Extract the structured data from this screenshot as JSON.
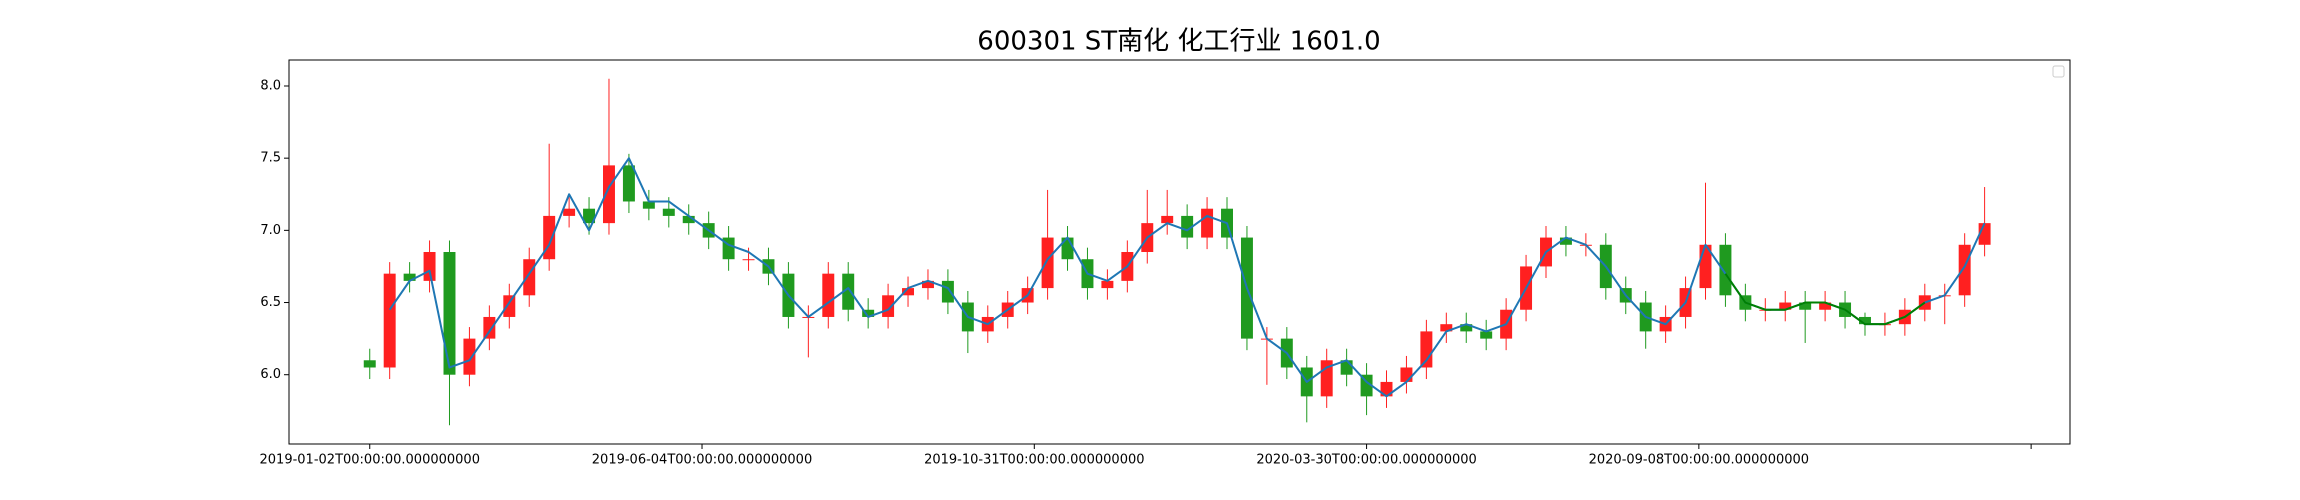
{
  "chart_data": {
    "type": "candlestick",
    "title": "600301 ST南化 化工行业 1601.0",
    "x": [
      0,
      6,
      12,
      18,
      24,
      30,
      36,
      42,
      48,
      54,
      60,
      66,
      72,
      78,
      84,
      90,
      96,
      102,
      108,
      114,
      120,
      126,
      132,
      138,
      144,
      150,
      156,
      162,
      168,
      174,
      180,
      186,
      192,
      198,
      204,
      210,
      216,
      222,
      228,
      234,
      240,
      246,
      252,
      258,
      264,
      270,
      276,
      282,
      288,
      294,
      300,
      306,
      312,
      318,
      324,
      330,
      336,
      342,
      348,
      354,
      360,
      366,
      372,
      378,
      384,
      390,
      396,
      402,
      408,
      414,
      420,
      426,
      432,
      438,
      444,
      450,
      456,
      462,
      468,
      474,
      480,
      486
    ],
    "open": [
      6.1,
      6.05,
      6.7,
      6.65,
      6.85,
      6.0,
      6.25,
      6.4,
      6.55,
      6.8,
      7.1,
      7.15,
      7.05,
      7.45,
      7.2,
      7.15,
      7.1,
      7.05,
      6.95,
      6.8,
      6.8,
      6.7,
      6.4,
      6.4,
      6.7,
      6.45,
      6.4,
      6.55,
      6.6,
      6.65,
      6.5,
      6.3,
      6.4,
      6.5,
      6.6,
      6.95,
      6.8,
      6.6,
      6.65,
      6.85,
      7.05,
      7.1,
      6.95,
      7.15,
      6.95,
      6.25,
      6.25,
      6.05,
      5.85,
      6.1,
      6.0,
      5.85,
      5.95,
      6.05,
      6.3,
      6.35,
      6.3,
      6.25,
      6.45,
      6.75,
      6.95,
      6.9,
      6.9,
      6.6,
      6.5,
      6.3,
      6.4,
      6.6,
      6.9,
      6.55,
      6.45,
      6.45,
      6.5,
      6.45,
      6.5,
      6.4,
      6.35,
      6.35,
      6.45,
      6.55,
      6.55,
      6.9
    ],
    "high": [
      6.18,
      6.78,
      6.78,
      6.93,
      6.93,
      6.33,
      6.48,
      6.63,
      6.88,
      7.6,
      7.23,
      7.23,
      8.05,
      7.53,
      7.28,
      7.23,
      7.18,
      7.13,
      7.03,
      6.88,
      6.88,
      6.78,
      6.48,
      6.78,
      6.78,
      6.53,
      6.63,
      6.68,
      6.73,
      6.73,
      6.58,
      6.48,
      6.58,
      6.68,
      7.28,
      7.03,
      6.88,
      6.73,
      6.93,
      7.28,
      7.28,
      7.18,
      7.23,
      7.23,
      7.03,
      6.33,
      6.33,
      6.13,
      6.18,
      6.18,
      6.08,
      6.03,
      6.13,
      6.38,
      6.43,
      6.43,
      6.38,
      6.53,
      6.83,
      7.03,
      7.03,
      6.98,
      6.98,
      6.68,
      6.58,
      6.48,
      6.68,
      7.33,
      6.98,
      6.63,
      6.53,
      6.58,
      6.58,
      6.58,
      6.58,
      6.43,
      6.43,
      6.53,
      6.63,
      6.63,
      6.98,
      7.3
    ],
    "low": [
      5.97,
      5.97,
      6.57,
      6.57,
      5.65,
      5.92,
      6.17,
      6.32,
      6.47,
      6.72,
      7.02,
      6.97,
      6.97,
      7.12,
      7.07,
      7.02,
      6.97,
      6.87,
      6.72,
      6.72,
      6.62,
      6.32,
      6.12,
      6.32,
      6.37,
      6.32,
      6.32,
      6.47,
      6.52,
      6.42,
      6.15,
      6.22,
      6.32,
      6.42,
      6.52,
      6.72,
      6.52,
      6.52,
      6.57,
      6.77,
      6.97,
      6.87,
      6.87,
      6.87,
      6.17,
      5.93,
      5.97,
      5.67,
      5.77,
      5.92,
      5.72,
      5.77,
      5.87,
      5.97,
      6.22,
      6.22,
      6.17,
      6.17,
      6.37,
      6.67,
      6.82,
      6.82,
      6.52,
      6.42,
      6.18,
      6.22,
      6.32,
      6.52,
      6.47,
      6.37,
      6.37,
      6.37,
      6.22,
      6.37,
      6.32,
      6.27,
      6.27,
      6.27,
      6.37,
      6.35,
      6.47,
      6.82
    ],
    "close": [
      6.05,
      6.7,
      6.65,
      6.85,
      6.0,
      6.25,
      6.4,
      6.55,
      6.8,
      7.1,
      7.15,
      7.05,
      7.45,
      7.2,
      7.15,
      7.1,
      7.05,
      6.95,
      6.8,
      6.8,
      6.7,
      6.4,
      6.4,
      6.7,
      6.45,
      6.4,
      6.55,
      6.6,
      6.65,
      6.5,
      6.3,
      6.4,
      6.5,
      6.6,
      6.95,
      6.8,
      6.6,
      6.65,
      6.85,
      7.05,
      7.1,
      6.95,
      7.15,
      6.95,
      6.25,
      6.25,
      6.05,
      5.85,
      6.1,
      6.0,
      5.85,
      5.95,
      6.05,
      6.3,
      6.35,
      6.3,
      6.25,
      6.45,
      6.75,
      6.95,
      6.9,
      6.9,
      6.6,
      6.5,
      6.3,
      6.4,
      6.6,
      6.9,
      6.55,
      6.45,
      6.45,
      6.5,
      6.45,
      6.5,
      6.4,
      6.35,
      6.35,
      6.45,
      6.55,
      6.55,
      6.9,
      7.05
    ],
    "up_color": "#ff2020",
    "down_color": "#1f9a1f",
    "series": [
      {
        "color": "#1f77b4",
        "values": [
          null,
          6.45,
          6.65,
          6.72,
          6.05,
          6.1,
          6.3,
          6.5,
          6.7,
          6.9,
          7.25,
          7.0,
          7.3,
          7.5,
          7.2,
          7.2,
          7.1,
          7.0,
          6.9,
          6.85,
          6.75,
          6.55,
          6.4,
          6.5,
          6.6,
          6.4,
          6.45,
          6.6,
          6.65,
          6.6,
          6.4,
          6.35,
          6.45,
          6.55,
          6.8,
          6.95,
          6.7,
          6.65,
          6.75,
          6.95,
          7.05,
          7.0,
          7.1,
          7.05,
          6.6,
          6.25,
          6.15,
          5.95,
          6.05,
          6.1,
          5.95,
          5.85,
          5.95,
          6.1,
          6.3,
          6.35,
          6.3,
          6.35,
          6.6,
          6.85,
          6.95,
          6.9,
          6.75,
          6.55,
          6.4,
          6.35,
          6.5,
          6.9,
          6.7,
          6.5,
          6.45,
          6.45,
          6.5,
          6.5,
          6.45,
          6.35,
          6.35,
          6.4,
          6.5,
          6.55,
          6.75,
          7.05
        ]
      },
      {
        "color": "#008000",
        "values": [
          null,
          null,
          null,
          null,
          null,
          null,
          null,
          null,
          null,
          null,
          null,
          null,
          null,
          null,
          null,
          null,
          null,
          null,
          null,
          null,
          null,
          null,
          null,
          null,
          null,
          null,
          null,
          null,
          null,
          null,
          null,
          null,
          null,
          null,
          null,
          null,
          null,
          null,
          null,
          null,
          null,
          null,
          null,
          null,
          null,
          null,
          null,
          null,
          null,
          null,
          null,
          null,
          null,
          null,
          null,
          null,
          null,
          null,
          null,
          null,
          null,
          null,
          null,
          null,
          null,
          null,
          null,
          null,
          6.7,
          6.5,
          6.45,
          6.45,
          6.5,
          6.5,
          6.45,
          6.35,
          6.35,
          6.4,
          6.5,
          null,
          null,
          null
        ]
      }
    ],
    "xlim": [
      -24.3,
      511.7
    ],
    "ylim": [
      5.52,
      8.18
    ],
    "xticks": [
      {
        "value": 0,
        "label": "2019-01-02T00:00:00.000000000"
      },
      {
        "value": 100,
        "label": "2019-06-04T00:00:00.000000000"
      },
      {
        "value": 200,
        "label": "2019-10-31T00:00:00.000000000"
      },
      {
        "value": 300,
        "label": "2020-03-30T00:00:00.000000000"
      },
      {
        "value": 400,
        "label": "2020-09-08T00:00:00.000000000"
      },
      {
        "value": 500,
        "label": null
      }
    ],
    "yticks": [
      {
        "value": 6,
        "label": "6.0"
      },
      6.5,
      {
        "value": 7,
        "label": "7.0"
      },
      7.5,
      {
        "value": 8,
        "label": "8.0"
      }
    ]
  }
}
